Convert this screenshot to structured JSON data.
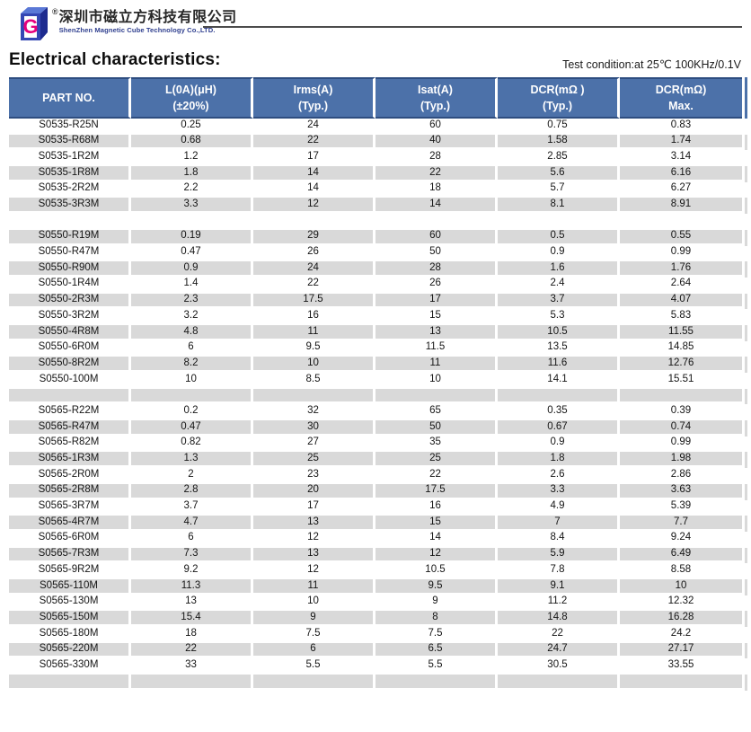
{
  "brand": {
    "logo_icon": "magnetic-cube-logo",
    "registered_mark": "®",
    "company_cn": "深圳市磁立方科技有限公司",
    "company_en": "ShenZhen Magnetic Cube Technology Co.,LTD."
  },
  "page": {
    "title": "Electrical characteristics:",
    "test_condition": "Test condition:at 25℃ 100KHz/0.1V"
  },
  "table": {
    "headers": [
      {
        "line1": "PART NO.",
        "line2": ""
      },
      {
        "line1": "L(0A)(μH)",
        "line2": "(±20%)"
      },
      {
        "line1": "Irms(A)",
        "line2": "(Typ.)"
      },
      {
        "line1": "Isat(A)",
        "line2": "(Typ.)"
      },
      {
        "line1": "DCR(mΩ )",
        "line2": "(Typ.)"
      },
      {
        "line1": "DCR(mΩ)",
        "line2": "Max."
      }
    ],
    "rows": [
      {
        "part": "S0535-R25N",
        "values": [
          "0.25",
          "24",
          "60",
          "0.75",
          "0.83"
        ]
      },
      {
        "part": "S0535-R68M",
        "values": [
          "0.68",
          "22",
          "40",
          "1.58",
          "1.74"
        ]
      },
      {
        "part": "S0535-1R2M",
        "values": [
          "1.2",
          "17",
          "28",
          "2.85",
          "3.14"
        ]
      },
      {
        "part": "S0535-1R8M",
        "values": [
          "1.8",
          "14",
          "22",
          "5.6",
          "6.16"
        ]
      },
      {
        "part": "S0535-2R2M",
        "values": [
          "2.2",
          "14",
          "18",
          "5.7",
          "6.27"
        ]
      },
      {
        "part": "S0535-3R3M",
        "values": [
          "3.3",
          "12",
          "14",
          "8.1",
          "8.91"
        ]
      },
      {
        "spacer": true
      },
      {
        "part": "S0550-R19M",
        "values": [
          "0.19",
          "29",
          "60",
          "0.5",
          "0.55"
        ]
      },
      {
        "part": "S0550-R47M",
        "values": [
          "0.47",
          "26",
          "50",
          "0.9",
          "0.99"
        ]
      },
      {
        "part": "S0550-R90M",
        "values": [
          "0.9",
          "24",
          "28",
          "1.6",
          "1.76"
        ]
      },
      {
        "part": "S0550-1R4M",
        "values": [
          "1.4",
          "22",
          "26",
          "2.4",
          "2.64"
        ]
      },
      {
        "part": "S0550-2R3M",
        "values": [
          "2.3",
          "17.5",
          "17",
          "3.7",
          "4.07"
        ]
      },
      {
        "part": "S0550-3R2M",
        "values": [
          "3.2",
          "16",
          "15",
          "5.3",
          "5.83"
        ]
      },
      {
        "part": "S0550-4R8M",
        "values": [
          "4.8",
          "11",
          "13",
          "10.5",
          "11.55"
        ]
      },
      {
        "part": "S0550-6R0M",
        "values": [
          "6",
          "9.5",
          "11.5",
          "13.5",
          "14.85"
        ]
      },
      {
        "part": "S0550-8R2M",
        "values": [
          "8.2",
          "10",
          "11",
          "11.6",
          "12.76"
        ]
      },
      {
        "part": "S0550-100M",
        "values": [
          "10",
          "8.5",
          "10",
          "14.1",
          "15.51"
        ]
      },
      {
        "spacer": true
      },
      {
        "part": "S0565-R22M",
        "values": [
          "0.2",
          "32",
          "65",
          "0.35",
          "0.39"
        ]
      },
      {
        "part": "S0565-R47M",
        "values": [
          "0.47",
          "30",
          "50",
          "0.67",
          "0.74"
        ]
      },
      {
        "part": "S0565-R82M",
        "values": [
          "0.82",
          "27",
          "35",
          "0.9",
          "0.99"
        ]
      },
      {
        "part": "S0565-1R3M",
        "values": [
          "1.3",
          "25",
          "25",
          "1.8",
          "1.98"
        ]
      },
      {
        "part": "S0565-2R0M",
        "values": [
          "2",
          "23",
          "22",
          "2.6",
          "2.86"
        ]
      },
      {
        "part": "S0565-2R8M",
        "values": [
          "2.8",
          "20",
          "17.5",
          "3.3",
          "3.63"
        ]
      },
      {
        "part": "S0565-3R7M",
        "values": [
          "3.7",
          "17",
          "16",
          "4.9",
          "5.39"
        ]
      },
      {
        "part": "S0565-4R7M",
        "values": [
          "4.7",
          "13",
          "15",
          "7",
          "7.7"
        ]
      },
      {
        "part": "S0565-6R0M",
        "values": [
          "6",
          "12",
          "14",
          "8.4",
          "9.24"
        ]
      },
      {
        "part": "S0565-7R3M",
        "values": [
          "7.3",
          "13",
          "12",
          "5.9",
          "6.49"
        ]
      },
      {
        "part": "S0565-9R2M",
        "values": [
          "9.2",
          "12",
          "10.5",
          "7.8",
          "8.58"
        ]
      },
      {
        "part": "S0565-110M",
        "values": [
          "11.3",
          "11",
          "9.5",
          "9.1",
          "10"
        ]
      },
      {
        "part": "S0565-130M",
        "values": [
          "13",
          "10",
          "9",
          "11.2",
          "12.32"
        ]
      },
      {
        "part": "S0565-150M",
        "values": [
          "15.4",
          "9",
          "8",
          "14.8",
          "16.28"
        ]
      },
      {
        "part": "S0565-180M",
        "values": [
          "18",
          "7.5",
          "7.5",
          "22",
          "24.2"
        ]
      },
      {
        "part": "S0565-220M",
        "values": [
          "22",
          "6",
          "6.5",
          "24.7",
          "27.17"
        ]
      },
      {
        "part": "S0565-330M",
        "values": [
          "33",
          "5.5",
          "5.5",
          "30.5",
          "33.55"
        ]
      },
      {
        "spacer": true
      }
    ]
  },
  "colors": {
    "header_bg": "#4c71a9",
    "header_border": "#2e4d80",
    "row_gray": "#d9d9d9",
    "logo_blue_dark": "#1d2b8f",
    "logo_blue_mid": "#3446b4",
    "logo_blue_light": "#5a78d6",
    "logo_magenta": "#e5007d",
    "rule_gray": "#4c4c4c"
  }
}
